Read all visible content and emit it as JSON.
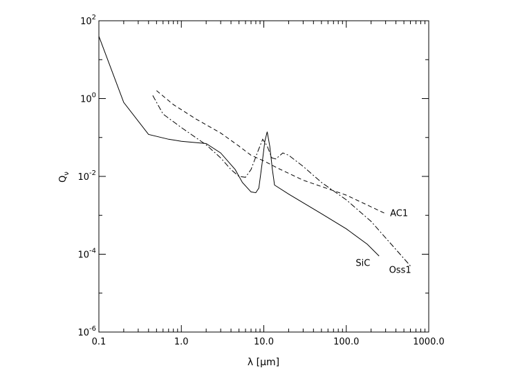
{
  "chart_data": {
    "type": "line",
    "title": "",
    "xlabel": "λ [μm]",
    "ylabel": "Qν",
    "xscale": "log",
    "yscale": "log",
    "xlim": [
      0.1,
      1000.0
    ],
    "ylim": [
      1e-06,
      100
    ],
    "grid": false,
    "x_tick_labels": [
      {
        "value": 0.1,
        "label": "0.1"
      },
      {
        "value": 1,
        "label": "1.0"
      },
      {
        "value": 10,
        "label": "10.0"
      },
      {
        "value": 100,
        "label": "100.0"
      },
      {
        "value": 1000,
        "label": "1000.0"
      }
    ],
    "y_tick_labels": [
      {
        "value": 1e-06,
        "base": "10",
        "exp": "-6"
      },
      {
        "value": 0.0001,
        "base": "10",
        "exp": "-4"
      },
      {
        "value": 0.01,
        "base": "10",
        "exp": "-2"
      },
      {
        "value": 1,
        "base": "10",
        "exp": "0"
      },
      {
        "value": 100,
        "base": "10",
        "exp": "2"
      }
    ],
    "series": [
      {
        "name": "SiC",
        "style": "solid",
        "label_at": [
          130,
          5e-05
        ],
        "points": [
          [
            0.1,
            40
          ],
          [
            0.2,
            0.8
          ],
          [
            0.4,
            0.12
          ],
          [
            0.7,
            0.09
          ],
          [
            1.0,
            0.08
          ],
          [
            2.0,
            0.07
          ],
          [
            3.0,
            0.04
          ],
          [
            4.5,
            0.015
          ],
          [
            5.5,
            0.007
          ],
          [
            7.0,
            0.004
          ],
          [
            8.0,
            0.0038
          ],
          [
            8.7,
            0.005
          ],
          [
            9.5,
            0.02
          ],
          [
            10.3,
            0.08
          ],
          [
            11.0,
            0.14
          ],
          [
            11.8,
            0.06
          ],
          [
            12.7,
            0.015
          ],
          [
            13.5,
            0.006
          ],
          [
            20,
            0.0035
          ],
          [
            50,
            0.0011
          ],
          [
            100,
            0.00045
          ],
          [
            180,
            0.00018
          ],
          [
            250,
            9e-05
          ]
        ]
      },
      {
        "name": "AC1",
        "style": "dashed",
        "label_at": [
          340,
          0.00095
        ],
        "points": [
          [
            0.5,
            1.6
          ],
          [
            0.8,
            0.7
          ],
          [
            1.5,
            0.3
          ],
          [
            3.0,
            0.13
          ],
          [
            5.0,
            0.06
          ],
          [
            7.0,
            0.035
          ],
          [
            10.0,
            0.025
          ],
          [
            15,
            0.016
          ],
          [
            30,
            0.008
          ],
          [
            100,
            0.0033
          ],
          [
            300,
            0.0011
          ]
        ]
      },
      {
        "name": "Oss1",
        "style": "dashdot",
        "label_at": [
          330,
          3.3e-05
        ],
        "points": [
          [
            0.45,
            1.2
          ],
          [
            0.6,
            0.4
          ],
          [
            1.0,
            0.18
          ],
          [
            2.0,
            0.065
          ],
          [
            3.0,
            0.03
          ],
          [
            4.0,
            0.015
          ],
          [
            5.0,
            0.01
          ],
          [
            6.0,
            0.0095
          ],
          [
            7.0,
            0.015
          ],
          [
            8.5,
            0.045
          ],
          [
            9.7,
            0.09
          ],
          [
            11.0,
            0.06
          ],
          [
            12.5,
            0.03
          ],
          [
            14.0,
            0.028
          ],
          [
            17,
            0.04
          ],
          [
            20,
            0.035
          ],
          [
            30,
            0.018
          ],
          [
            50,
            0.007
          ],
          [
            100,
            0.0025
          ],
          [
            200,
            0.0007
          ],
          [
            600,
            5e-05
          ]
        ]
      }
    ]
  }
}
